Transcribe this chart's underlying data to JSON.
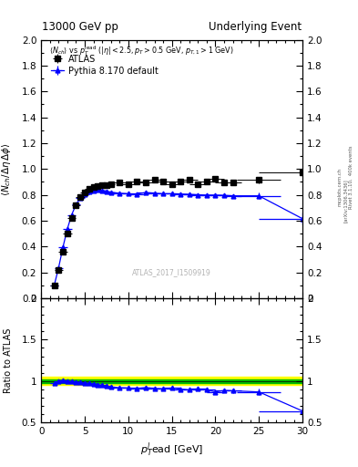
{
  "title_left": "13000 GeV pp",
  "title_right": "Underlying Event",
  "watermark": "ATLAS_2017_I1509919",
  "right_label1": "mcplots.cern.ch",
  "right_label2": "[arXiv:1306.3436]",
  "right_label3": "Rivet 3.1.10,  400k events",
  "atlas_x": [
    1.5,
    2.0,
    2.5,
    3.0,
    3.5,
    4.0,
    4.5,
    5.0,
    5.5,
    6.0,
    6.5,
    7.0,
    7.5,
    8.0,
    9.0,
    10.0,
    11.0,
    12.0,
    13.0,
    14.0,
    15.0,
    16.0,
    17.0,
    18.0,
    19.0,
    20.0,
    21.0,
    22.0,
    25.0,
    30.0
  ],
  "atlas_y": [
    0.1,
    0.22,
    0.36,
    0.5,
    0.62,
    0.72,
    0.78,
    0.82,
    0.845,
    0.86,
    0.87,
    0.875,
    0.878,
    0.885,
    0.895,
    0.885,
    0.905,
    0.895,
    0.915,
    0.905,
    0.885,
    0.905,
    0.915,
    0.885,
    0.905,
    0.925,
    0.895,
    0.895,
    0.915,
    0.97
  ],
  "atlas_xerr": [
    0.5,
    0.5,
    0.5,
    0.5,
    0.5,
    0.5,
    0.5,
    0.5,
    0.5,
    0.5,
    0.5,
    0.5,
    0.5,
    0.5,
    1.0,
    1.0,
    1.0,
    1.0,
    1.0,
    1.0,
    1.0,
    1.0,
    1.0,
    1.0,
    1.0,
    1.0,
    1.0,
    1.0,
    2.5,
    5.0
  ],
  "atlas_yerr": [
    0.008,
    0.008,
    0.008,
    0.009,
    0.009,
    0.01,
    0.01,
    0.01,
    0.01,
    0.01,
    0.01,
    0.01,
    0.01,
    0.01,
    0.01,
    0.01,
    0.01,
    0.01,
    0.012,
    0.012,
    0.012,
    0.012,
    0.012,
    0.015,
    0.015,
    0.015,
    0.015,
    0.015,
    0.025,
    0.035
  ],
  "pythia_x": [
    1.5,
    2.0,
    2.5,
    3.0,
    3.5,
    4.0,
    4.5,
    5.0,
    5.5,
    6.0,
    6.5,
    7.0,
    7.5,
    8.0,
    9.0,
    10.0,
    11.0,
    12.0,
    13.0,
    14.0,
    15.0,
    16.0,
    17.0,
    18.0,
    19.0,
    20.0,
    21.0,
    22.0,
    25.0,
    30.0
  ],
  "pythia_y": [
    0.1,
    0.235,
    0.395,
    0.535,
    0.645,
    0.725,
    0.775,
    0.805,
    0.825,
    0.835,
    0.838,
    0.835,
    0.828,
    0.82,
    0.812,
    0.808,
    0.805,
    0.818,
    0.812,
    0.808,
    0.808,
    0.806,
    0.804,
    0.8,
    0.798,
    0.798,
    0.796,
    0.792,
    0.792,
    0.615
  ],
  "pythia_xerr": [
    0.5,
    0.5,
    0.5,
    0.5,
    0.5,
    0.5,
    0.5,
    0.5,
    0.5,
    0.5,
    0.5,
    0.5,
    0.5,
    0.5,
    1.0,
    1.0,
    1.0,
    1.0,
    1.0,
    1.0,
    1.0,
    1.0,
    1.0,
    1.0,
    1.0,
    1.0,
    1.0,
    1.0,
    2.5,
    5.0
  ],
  "pythia_yerr": [
    0.004,
    0.005,
    0.006,
    0.007,
    0.007,
    0.007,
    0.007,
    0.007,
    0.007,
    0.007,
    0.007,
    0.007,
    0.007,
    0.007,
    0.007,
    0.007,
    0.007,
    0.007,
    0.009,
    0.009,
    0.009,
    0.009,
    0.009,
    0.012,
    0.012,
    0.015,
    0.015,
    0.015,
    0.025,
    0.045
  ],
  "ratio_pythia_y": [
    0.975,
    1.0,
    1.01,
    1.0,
    0.995,
    0.99,
    0.985,
    0.978,
    0.972,
    0.968,
    0.96,
    0.95,
    0.94,
    0.93,
    0.92,
    0.917,
    0.912,
    0.922,
    0.912,
    0.908,
    0.918,
    0.905,
    0.895,
    0.908,
    0.895,
    0.87,
    0.888,
    0.884,
    0.87,
    0.64
  ],
  "ratio_pythia_yerr": [
    0.012,
    0.012,
    0.012,
    0.012,
    0.012,
    0.012,
    0.012,
    0.012,
    0.012,
    0.012,
    0.012,
    0.012,
    0.012,
    0.012,
    0.012,
    0.012,
    0.012,
    0.012,
    0.015,
    0.015,
    0.015,
    0.015,
    0.015,
    0.02,
    0.02,
    0.025,
    0.025,
    0.025,
    0.04,
    0.065
  ],
  "ylim_main": [
    0.0,
    2.0
  ],
  "ylim_ratio": [
    0.5,
    2.0
  ],
  "xlim": [
    0,
    30
  ],
  "atlas_color": "#000000",
  "pythia_color": "#0000ff",
  "band_color_yellow": "#ffff00",
  "band_color_green": "#00bb00",
  "band_yellow_halfwidth": 0.05,
  "band_green_halfwidth": 0.025
}
